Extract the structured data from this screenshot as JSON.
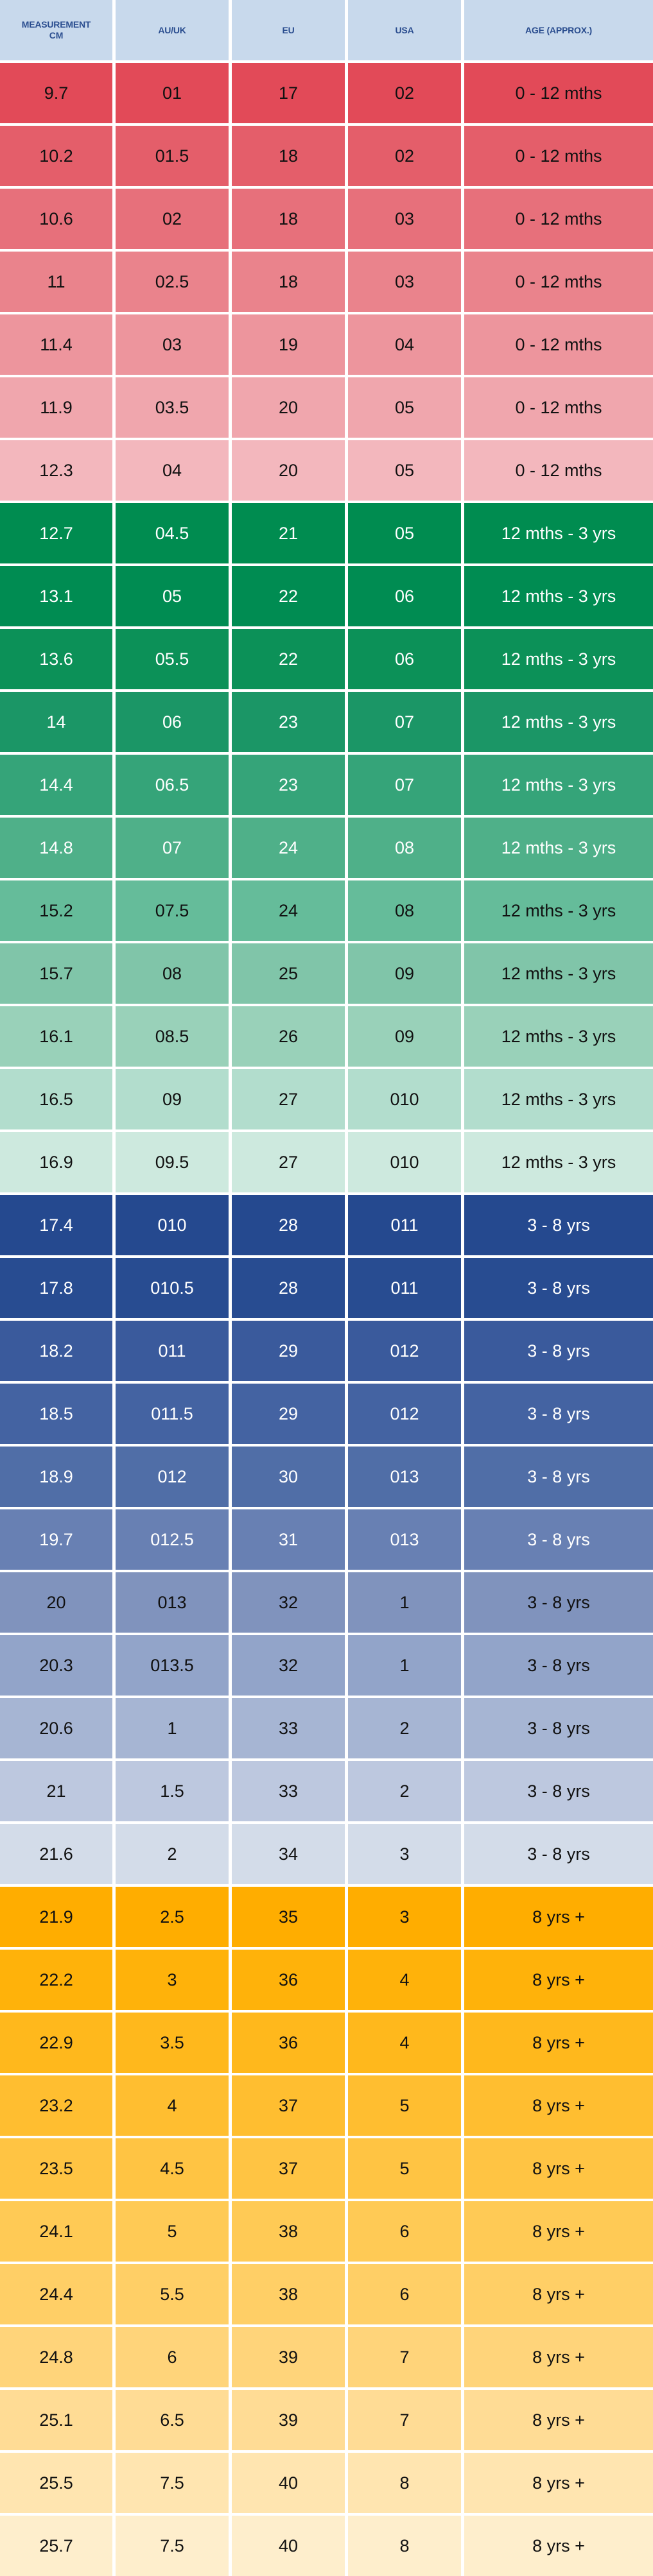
{
  "header": [
    "MEASUREMENT\nCM",
    "AU/UK",
    "EU",
    "USA",
    "AGE (APPROX.)"
  ],
  "colors": {
    "header_bg": "#c8d9ec",
    "header_text": "#2a4d8f"
  },
  "rows": [
    {
      "cells": [
        "9.7",
        "01",
        "17",
        "02",
        "0 - 12 mths"
      ],
      "bg": "#e24a58",
      "text": "dark"
    },
    {
      "cells": [
        "10.2",
        "01.5",
        "18",
        "02",
        "0 - 12 mths"
      ],
      "bg": "#e45e6a",
      "text": "dark"
    },
    {
      "cells": [
        "10.6",
        "02",
        "18",
        "03",
        "0 - 12 mths"
      ],
      "bg": "#e7707b",
      "text": "dark"
    },
    {
      "cells": [
        "11",
        "02.5",
        "18",
        "03",
        "0 - 12 mths"
      ],
      "bg": "#ea838c",
      "text": "dark"
    },
    {
      "cells": [
        "11.4",
        "03",
        "19",
        "04",
        "0 - 12 mths"
      ],
      "bg": "#ed959d",
      "text": "dark"
    },
    {
      "cells": [
        "11.9",
        "03.5",
        "20",
        "05",
        "0 - 12 mths"
      ],
      "bg": "#f0a6ad",
      "text": "dark"
    },
    {
      "cells": [
        "12.3",
        "04",
        "20",
        "05",
        "0 - 12 mths"
      ],
      "bg": "#f3b7bd",
      "text": "dark"
    },
    {
      "cells": [
        "12.7",
        "04.5",
        "21",
        "05",
        "12 mths - 3 yrs"
      ],
      "bg": "#008c50",
      "text": "light"
    },
    {
      "cells": [
        "13.1",
        "05",
        "22",
        "06",
        "12 mths - 3 yrs"
      ],
      "bg": "#008c52",
      "text": "light"
    },
    {
      "cells": [
        "13.6",
        "05.5",
        "22",
        "06",
        "12 mths - 3 yrs"
      ],
      "bg": "#0c9158",
      "text": "light"
    },
    {
      "cells": [
        "14",
        "06",
        "23",
        "07",
        "12 mths - 3 yrs"
      ],
      "bg": "#1b9666",
      "text": "light"
    },
    {
      "cells": [
        "14.4",
        "06.5",
        "23",
        "07",
        "12 mths - 3 yrs"
      ],
      "bg": "#35a479",
      "text": "light"
    },
    {
      "cells": [
        "14.8",
        "07",
        "24",
        "08",
        "12 mths - 3 yrs"
      ],
      "bg": "#4fb089",
      "text": "light"
    },
    {
      "cells": [
        "15.2",
        "07.5",
        "24",
        "08",
        "12 mths - 3 yrs"
      ],
      "bg": "#65bc9a",
      "text": "dark"
    },
    {
      "cells": [
        "15.7",
        "08",
        "25",
        "09",
        "12 mths - 3 yrs"
      ],
      "bg": "#80c5a9",
      "text": "dark"
    },
    {
      "cells": [
        "16.1",
        "08.5",
        "26",
        "09",
        "12 mths - 3 yrs"
      ],
      "bg": "#99d1b9",
      "text": "dark"
    },
    {
      "cells": [
        "16.5",
        "09",
        "27",
        "010",
        "12 mths - 3 yrs"
      ],
      "bg": "#b2ddcd",
      "text": "dark"
    },
    {
      "cells": [
        "16.9",
        "09.5",
        "27",
        "010",
        "12 mths - 3 yrs"
      ],
      "bg": "#cde9de",
      "text": "dark"
    },
    {
      "cells": [
        "17.4",
        "010",
        "28",
        "011",
        "3 - 8 yrs"
      ],
      "bg": "#25498f",
      "text": "light"
    },
    {
      "cells": [
        "17.8",
        "010.5",
        "28",
        "011",
        "3 - 8 yrs"
      ],
      "bg": "#284c91",
      "text": "light"
    },
    {
      "cells": [
        "18.2",
        "011",
        "29",
        "012",
        "3 - 8 yrs"
      ],
      "bg": "#3a5a9c",
      "text": "light"
    },
    {
      "cells": [
        "18.5",
        "011.5",
        "29",
        "012",
        "3 - 8 yrs"
      ],
      "bg": "#4463a2",
      "text": "light"
    },
    {
      "cells": [
        "18.9",
        "012",
        "30",
        "013",
        "3 - 8 yrs"
      ],
      "bg": "#506ea7",
      "text": "light"
    },
    {
      "cells": [
        "19.7",
        "012.5",
        "31",
        "013",
        "3 - 8 yrs"
      ],
      "bg": "#6880b3",
      "text": "light"
    },
    {
      "cells": [
        "20",
        "013",
        "32",
        "1",
        "3 - 8 yrs"
      ],
      "bg": "#8093bd",
      "text": "dark"
    },
    {
      "cells": [
        "20.3",
        "013.5",
        "32",
        "1",
        "3 - 8 yrs"
      ],
      "bg": "#92a4c9",
      "text": "dark"
    },
    {
      "cells": [
        "20.6",
        "1",
        "33",
        "2",
        "3 - 8 yrs"
      ],
      "bg": "#a6b5d3",
      "text": "dark"
    },
    {
      "cells": [
        "21",
        "1.5",
        "33",
        "2",
        "3 - 8 yrs"
      ],
      "bg": "#bdc8df",
      "text": "dark"
    },
    {
      "cells": [
        "21.6",
        "2",
        "34",
        "3",
        "3 - 8 yrs"
      ],
      "bg": "#d3dce9",
      "text": "dark"
    },
    {
      "cells": [
        "21.9",
        "2.5",
        "35",
        "3",
        "8 yrs +"
      ],
      "bg": "#ffad00",
      "text": "dark"
    },
    {
      "cells": [
        "22.2",
        "3",
        "36",
        "4",
        "8 yrs +"
      ],
      "bg": "#ffb20a",
      "text": "dark"
    },
    {
      "cells": [
        "22.9",
        "3.5",
        "36",
        "4",
        "8 yrs +"
      ],
      "bg": "#ffb81c",
      "text": "dark"
    },
    {
      "cells": [
        "23.2",
        "4",
        "37",
        "5",
        "8 yrs +"
      ],
      "bg": "#ffbe30",
      "text": "dark"
    },
    {
      "cells": [
        "23.5",
        "4.5",
        "37",
        "5",
        "8 yrs +"
      ],
      "bg": "#ffc443",
      "text": "dark"
    },
    {
      "cells": [
        "24.1",
        "5",
        "38",
        "6",
        "8 yrs +"
      ],
      "bg": "#ffca55",
      "text": "dark"
    },
    {
      "cells": [
        "24.4",
        "5.5",
        "38",
        "6",
        "8 yrs +"
      ],
      "bg": "#ffcf66",
      "text": "dark"
    },
    {
      "cells": [
        "24.8",
        "6",
        "39",
        "7",
        "8 yrs +"
      ],
      "bg": "#ffd47a",
      "text": "dark"
    },
    {
      "cells": [
        "25.1",
        "6.5",
        "39",
        "7",
        "8 yrs +"
      ],
      "bg": "#ffdc95",
      "text": "dark"
    },
    {
      "cells": [
        "25.5",
        "7.5",
        "40",
        "8",
        "8 yrs +"
      ],
      "bg": "#ffe5b0",
      "text": "dark"
    },
    {
      "cells": [
        "25.7",
        "7.5",
        "40",
        "8",
        "8 yrs +"
      ],
      "bg": "#feeecc",
      "text": "dark"
    }
  ]
}
